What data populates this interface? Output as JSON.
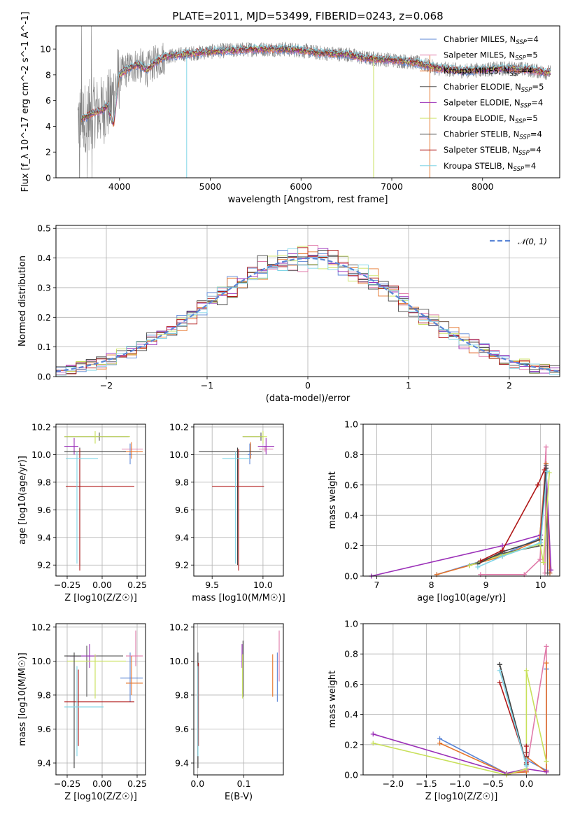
{
  "figure": {
    "title": "PLATE=2011, MJD=53499, FIBERID=0243, z=0.068"
  },
  "colors": {
    "Chabrier MILES": "#5b86d6",
    "Salpeter MILES": "#e07aa9",
    "Kroupa MILES": "#e5742a",
    "Chabrier ELODIE": "#555555",
    "Salpeter ELODIE": "#9b30b8",
    "Kroupa ELODIE": "#c8e05a",
    "Chabrier STELIB": "#444444",
    "Salpeter STELIB": "#b01818",
    "Kroupa STELIB": "#7fd4e6",
    "data": "#808080",
    "normal_curve": "#5b86d6"
  },
  "legend": {
    "position": "upper right",
    "entries": [
      {
        "name": "Chabrier MILES",
        "nssp": "4"
      },
      {
        "name": "Salpeter MILES",
        "nssp": "5"
      },
      {
        "name": "Kroupa MILES",
        "nssp": "4"
      },
      {
        "name": "Chabrier ELODIE",
        "nssp": "5"
      },
      {
        "name": "Salpeter ELODIE",
        "nssp": "4"
      },
      {
        "name": "Kroupa ELODIE",
        "nssp": "5"
      },
      {
        "name": "Chabrier STELIB",
        "nssp": "4"
      },
      {
        "name": "Salpeter STELIB",
        "nssp": "4"
      },
      {
        "name": "Kroupa STELIB",
        "nssp": "4"
      }
    ]
  },
  "chart_data": [
    {
      "id": "spectrum",
      "type": "line",
      "xlabel": "wavelength [Angstrom, rest frame]",
      "ylabel": "Flux [f_λ 10^-17 erg cm^-2 s^-1 A^-1]",
      "xlim": [
        3300,
        8850
      ],
      "ylim": [
        0,
        11.8
      ],
      "xticks": [
        4000,
        5000,
        6000,
        7000,
        8000
      ],
      "yticks": [
        0,
        2,
        4,
        6,
        8,
        10
      ],
      "grid": false,
      "data_profile": {
        "wavelength": [
          3550,
          3600,
          3700,
          3800,
          3900,
          4000,
          4100,
          4200,
          4300,
          4400,
          4500,
          4700,
          5000,
          5200,
          5500,
          5800,
          6000,
          6200,
          6500,
          6700,
          6900,
          7100,
          7300,
          7500,
          7800,
          8000,
          8300,
          8500,
          8700
        ],
        "flux": [
          4.5,
          4.6,
          5.0,
          5.2,
          5.8,
          8.0,
          8.5,
          8.8,
          8.4,
          9.0,
          9.4,
          9.6,
          9.8,
          9.9,
          10.0,
          10.0,
          9.9,
          9.7,
          9.6,
          9.3,
          9.2,
          9.1,
          8.9,
          8.5,
          8.3,
          8.4,
          8.5,
          8.4,
          8.2
        ]
      }
    },
    {
      "id": "residual-histogram",
      "type": "histogram",
      "xlabel": "(data-model)/error",
      "ylabel": "Normed distribution",
      "xlim": [
        -2.5,
        2.5
      ],
      "ylim": [
        0,
        0.51
      ],
      "xticks": [
        -2,
        -1,
        0,
        1,
        2
      ],
      "yticks": [
        0.0,
        0.1,
        0.2,
        0.3,
        0.4,
        0.5
      ],
      "grid": true,
      "bins": {
        "start": -2.5,
        "width": 0.1,
        "count": 50
      },
      "normal_label": "𝒩(0, 1)"
    },
    {
      "id": "age-vs-Z",
      "type": "errorbar",
      "xlabel": "Z [log10(Z/Z☉)]",
      "ylabel": "age  [log10(age/yr)]",
      "xlim": [
        -0.33,
        0.31
      ],
      "ylim": [
        9.12,
        10.22
      ],
      "xticks": [
        -0.25,
        0.0,
        0.25
      ],
      "yticks": [
        9.2,
        9.4,
        9.6,
        9.8,
        10.0,
        10.2
      ],
      "grid": true,
      "points": [
        {
          "series": "Chabrier MILES",
          "x": 0.2,
          "y": 10.0,
          "xlo": 0.19,
          "xhi": 0.21,
          "ylo": 9.93,
          "yhi": 10.08
        },
        {
          "series": "Salpeter MILES",
          "x": 0.21,
          "y": 10.04,
          "xlo": 0.14,
          "xhi": 0.29,
          "ylo": 10.02,
          "yhi": 10.06
        },
        {
          "series": "Kroupa MILES",
          "x": 0.21,
          "y": 10.02,
          "xlo": 0.15,
          "xhi": 0.29,
          "ylo": 9.97,
          "yhi": 10.09
        },
        {
          "series": "Chabrier ELODIE",
          "x": -0.02,
          "y": 10.13,
          "xlo": -0.27,
          "xhi": 0.19,
          "ylo": 10.1,
          "yhi": 10.16
        },
        {
          "series": "Salpeter ELODIE",
          "x": -0.2,
          "y": 10.06,
          "xlo": -0.27,
          "xhi": -0.17,
          "ylo": 10.0,
          "yhi": 10.12
        },
        {
          "series": "Kroupa ELODIE",
          "x": -0.05,
          "y": 10.13,
          "xlo": -0.27,
          "xhi": 0.2,
          "ylo": 10.08,
          "yhi": 10.17
        },
        {
          "series": "Chabrier STELIB",
          "x": -0.16,
          "y": 10.02,
          "xlo": -0.27,
          "xhi": 0.17,
          "ylo": 9.2,
          "yhi": 10.05
        },
        {
          "series": "Salpeter STELIB",
          "x": -0.16,
          "y": 9.77,
          "xlo": -0.26,
          "xhi": 0.23,
          "ylo": 9.16,
          "yhi": 10.04
        },
        {
          "series": "Kroupa STELIB",
          "x": -0.18,
          "y": 9.97,
          "xlo": -0.26,
          "xhi": -0.03,
          "ylo": 9.21,
          "yhi": 10.02
        }
      ]
    },
    {
      "id": "age-vs-mass",
      "type": "errorbar",
      "xlabel": "mass [log10(M/M☉)]",
      "ylabel": "",
      "xlim": [
        9.32,
        10.2
      ],
      "ylim": [
        9.12,
        10.22
      ],
      "xticks": [
        9.5,
        10.0
      ],
      "yticks": [
        9.2,
        9.4,
        9.6,
        9.8,
        10.0,
        10.2
      ],
      "grid": true,
      "points": [
        {
          "series": "Chabrier MILES",
          "x": 9.87,
          "y": 10.0,
          "xlo": 9.85,
          "xhi": 9.89,
          "ylo": 9.93,
          "yhi": 10.08
        },
        {
          "series": "Salpeter MILES",
          "x": 10.02,
          "y": 10.04,
          "xlo": 9.96,
          "xhi": 10.1,
          "ylo": 10.02,
          "yhi": 10.06
        },
        {
          "series": "Kroupa MILES",
          "x": 9.88,
          "y": 10.02,
          "xlo": 9.84,
          "xhi": 9.91,
          "ylo": 9.97,
          "yhi": 10.09
        },
        {
          "series": "Chabrier ELODIE",
          "x": 9.98,
          "y": 10.13,
          "xlo": 9.8,
          "xhi": 10.0,
          "ylo": 10.1,
          "yhi": 10.16
        },
        {
          "series": "Salpeter ELODIE",
          "x": 10.03,
          "y": 10.06,
          "xlo": 9.95,
          "xhi": 10.11,
          "ylo": 10.0,
          "yhi": 10.12
        },
        {
          "series": "Kroupa ELODIE",
          "x": 10.0,
          "y": 10.13,
          "xlo": 9.8,
          "xhi": 10.04,
          "ylo": 10.08,
          "yhi": 10.17
        },
        {
          "series": "Chabrier STELIB",
          "x": 9.75,
          "y": 10.02,
          "xlo": 9.37,
          "xhi": 9.99,
          "ylo": 9.2,
          "yhi": 10.05
        },
        {
          "series": "Salpeter STELIB",
          "x": 9.76,
          "y": 9.77,
          "xlo": 9.5,
          "xhi": 10.01,
          "ylo": 9.16,
          "yhi": 10.04
        },
        {
          "series": "Kroupa STELIB",
          "x": 9.73,
          "y": 9.97,
          "xlo": 9.6,
          "xhi": 9.87,
          "ylo": 9.21,
          "yhi": 10.02
        }
      ]
    },
    {
      "id": "mass-weight-vs-age",
      "type": "line",
      "xlabel": "age  [log10(age/yr)]",
      "ylabel": "mass weight",
      "xlim": [
        6.75,
        10.35
      ],
      "ylim": [
        0,
        1.0
      ],
      "xticks": [
        7,
        8,
        9,
        10
      ],
      "yticks": [
        0.0,
        0.2,
        0.4,
        0.6,
        0.8,
        1.0
      ],
      "grid": true,
      "series": [
        {
          "name": "Chabrier MILES",
          "x": [
            8.1,
            9.3,
            9.98,
            10.1,
            10.17
          ],
          "y": [
            0.01,
            0.14,
            0.25,
            0.68,
            0.02
          ]
        },
        {
          "name": "Salpeter MILES",
          "x": [
            8.9,
            9.7,
            9.99,
            10.1,
            10.08
          ],
          "y": [
            0.01,
            0.01,
            0.11,
            0.85,
            0.02
          ]
        },
        {
          "name": "Kroupa MILES",
          "x": [
            8.1,
            9.3,
            9.98,
            10.1,
            10.17
          ],
          "y": [
            0.01,
            0.13,
            0.24,
            0.74,
            0.02
          ]
        },
        {
          "name": "Chabrier ELODIE",
          "x": [
            8.7,
            9.3,
            10.0,
            10.1,
            10.13
          ],
          "y": [
            0.07,
            0.15,
            0.2,
            0.73,
            0.02
          ]
        },
        {
          "name": "Salpeter ELODIE",
          "x": [
            6.9,
            9.3,
            10.0,
            10.1,
            10.19
          ],
          "y": [
            0.0,
            0.2,
            0.27,
            0.71,
            0.04
          ]
        },
        {
          "name": "Kroupa ELODIE",
          "x": [
            8.7,
            9.3,
            9.99,
            10.05,
            10.16
          ],
          "y": [
            0.07,
            0.14,
            0.21,
            0.09,
            0.68
          ]
        },
        {
          "name": "Chabrier STELIB",
          "x": [
            8.85,
            9.3,
            10.0,
            10.1
          ],
          "y": [
            0.08,
            0.16,
            0.24,
            0.71
          ]
        },
        {
          "name": "Salpeter STELIB",
          "x": [
            8.9,
            9.3,
            9.95,
            10.07
          ],
          "y": [
            0.1,
            0.17,
            0.6,
            0.7
          ]
        },
        {
          "name": "Kroupa STELIB",
          "x": [
            8.85,
            9.3,
            10.0,
            10.12
          ],
          "y": [
            0.06,
            0.13,
            0.22,
            0.69
          ]
        }
      ]
    },
    {
      "id": "mass-vs-Z",
      "type": "errorbar",
      "xlabel": "Z [log10(Z/Z☉)]",
      "ylabel": "mass [log10(M/M☉)]",
      "xlim": [
        -0.33,
        0.31
      ],
      "ylim": [
        9.33,
        10.22
      ],
      "xticks": [
        -0.25,
        0.0,
        0.25
      ],
      "yticks": [
        9.4,
        9.6,
        9.8,
        10.0,
        10.2
      ],
      "grid": true,
      "points": [
        {
          "series": "Chabrier MILES",
          "x": 0.2,
          "y": 9.9,
          "xlo": 0.13,
          "xhi": 0.29,
          "ylo": 9.76,
          "yhi": 10.05
        },
        {
          "series": "Salpeter MILES",
          "x": 0.24,
          "y": 10.03,
          "xlo": 0.17,
          "xhi": 0.29,
          "ylo": 9.97,
          "yhi": 10.18
        },
        {
          "series": "Kroupa MILES",
          "x": 0.21,
          "y": 9.87,
          "xlo": 0.17,
          "xhi": 0.29,
          "ylo": 9.8,
          "yhi": 10.03
        },
        {
          "series": "Chabrier ELODIE",
          "x": -0.11,
          "y": 10.03,
          "xlo": -0.23,
          "xhi": 0.15,
          "ylo": 9.79,
          "yhi": 10.09
        },
        {
          "series": "Salpeter ELODIE",
          "x": -0.09,
          "y": 10.03,
          "xlo": -0.25,
          "xhi": -0.04,
          "ylo": 9.96,
          "yhi": 10.1
        },
        {
          "series": "Kroupa ELODIE",
          "x": -0.05,
          "y": 10.0,
          "xlo": -0.25,
          "xhi": 0.17,
          "ylo": 9.78,
          "yhi": 10.04
        },
        {
          "series": "Chabrier STELIB",
          "x": -0.2,
          "y": 10.03,
          "xlo": -0.27,
          "xhi": -0.15,
          "ylo": 9.37,
          "yhi": 10.05
        },
        {
          "series": "Salpeter STELIB",
          "x": -0.17,
          "y": 9.76,
          "xlo": -0.27,
          "xhi": 0.23,
          "ylo": 9.5,
          "yhi": 9.95
        },
        {
          "series": "Kroupa STELIB",
          "x": -0.18,
          "y": 9.73,
          "xlo": -0.27,
          "xhi": 0.01,
          "ylo": 9.44,
          "yhi": 9.97
        }
      ]
    },
    {
      "id": "mass-vs-ebv",
      "type": "errorbar",
      "xlabel": "E(B-V)",
      "ylabel": "",
      "xlim": [
        -0.008,
        0.185
      ],
      "ylim": [
        9.33,
        10.22
      ],
      "xticks": [
        0.0,
        0.1
      ],
      "yticks": [
        9.4,
        9.6,
        9.8,
        10.0,
        10.2
      ],
      "grid": true,
      "points": [
        {
          "series": "Chabrier MILES",
          "x": 0.172,
          "y": 9.9,
          "ylo": 9.76,
          "yhi": 10.05
        },
        {
          "series": "Salpeter MILES",
          "x": 0.176,
          "y": 10.03,
          "ylo": 9.88,
          "yhi": 10.18
        },
        {
          "series": "Kroupa MILES",
          "x": 0.162,
          "y": 9.87,
          "ylo": 9.79,
          "yhi": 10.04
        },
        {
          "series": "Chabrier ELODIE",
          "x": 0.098,
          "y": 10.03,
          "ylo": 9.79,
          "yhi": 10.12
        },
        {
          "series": "Salpeter ELODIE",
          "x": 0.096,
          "y": 10.03,
          "ylo": 9.96,
          "yhi": 10.1
        },
        {
          "series": "Kroupa ELODIE",
          "x": 0.097,
          "y": 10.0,
          "ylo": 9.78,
          "yhi": 10.04
        },
        {
          "series": "Chabrier STELIB",
          "x": 0.001,
          "y": 10.03,
          "ylo": 9.37,
          "yhi": 10.05
        },
        {
          "series": "Salpeter STELIB",
          "x": 0.002,
          "y": 9.76,
          "ylo": 9.5,
          "yhi": 9.99
        },
        {
          "series": "Kroupa STELIB",
          "x": 0.001,
          "y": 9.73,
          "ylo": 9.44,
          "yhi": 9.97
        }
      ]
    },
    {
      "id": "mass-weight-vs-Z",
      "type": "line",
      "xlabel": "Z [log10(Z/Z☉)]",
      "ylabel": "mass weight",
      "xlim": [
        -2.45,
        0.5
      ],
      "ylim": [
        0,
        1.0
      ],
      "xticks": [
        -2.0,
        -1.5,
        -1.0,
        -0.5,
        0.0
      ],
      "yticks": [
        0.0,
        0.2,
        0.4,
        0.6,
        0.8,
        1.0
      ],
      "grid": true,
      "series": [
        {
          "name": "Chabrier MILES",
          "x": [
            -1.3,
            -0.3,
            0.0,
            0.0,
            0.3,
            0.3
          ],
          "y": [
            0.24,
            0.01,
            0.02,
            0.1,
            0.03,
            0.7
          ]
        },
        {
          "name": "Salpeter MILES",
          "x": [
            -0.3,
            0.0,
            0.3,
            0.3
          ],
          "y": [
            0.0,
            0.03,
            0.85,
            0.03
          ]
        },
        {
          "name": "Kroupa MILES",
          "x": [
            -1.3,
            -0.3,
            0.0,
            0.0,
            0.3,
            0.3
          ],
          "y": [
            0.21,
            0.01,
            0.02,
            0.12,
            0.02,
            0.74
          ]
        },
        {
          "name": "Chabrier ELODIE",
          "x": [
            -0.4,
            0.0,
            0.0,
            0.0
          ],
          "y": [
            0.73,
            0.07,
            0.12,
            0.15
          ]
        },
        {
          "name": "Salpeter ELODIE",
          "x": [
            -2.3,
            -0.3,
            0.0,
            0.3
          ],
          "y": [
            0.27,
            0.01,
            0.04,
            0.02
          ]
        },
        {
          "name": "Kroupa ELODIE",
          "x": [
            -2.3,
            -0.3,
            0.0,
            0.0,
            0.3
          ],
          "y": [
            0.21,
            0.0,
            0.04,
            0.69,
            0.09
          ]
        },
        {
          "name": "Chabrier STELIB",
          "x": [
            -0.4,
            0.0,
            0.0
          ],
          "y": [
            0.73,
            0.07,
            0.12
          ]
        },
        {
          "name": "Salpeter STELIB",
          "x": [
            -0.4,
            0.0,
            0.0
          ],
          "y": [
            0.61,
            0.08,
            0.19
          ]
        },
        {
          "name": "Kroupa STELIB",
          "x": [
            -0.4,
            0.0,
            0.0
          ],
          "y": [
            0.69,
            0.06,
            0.1
          ]
        }
      ]
    }
  ]
}
